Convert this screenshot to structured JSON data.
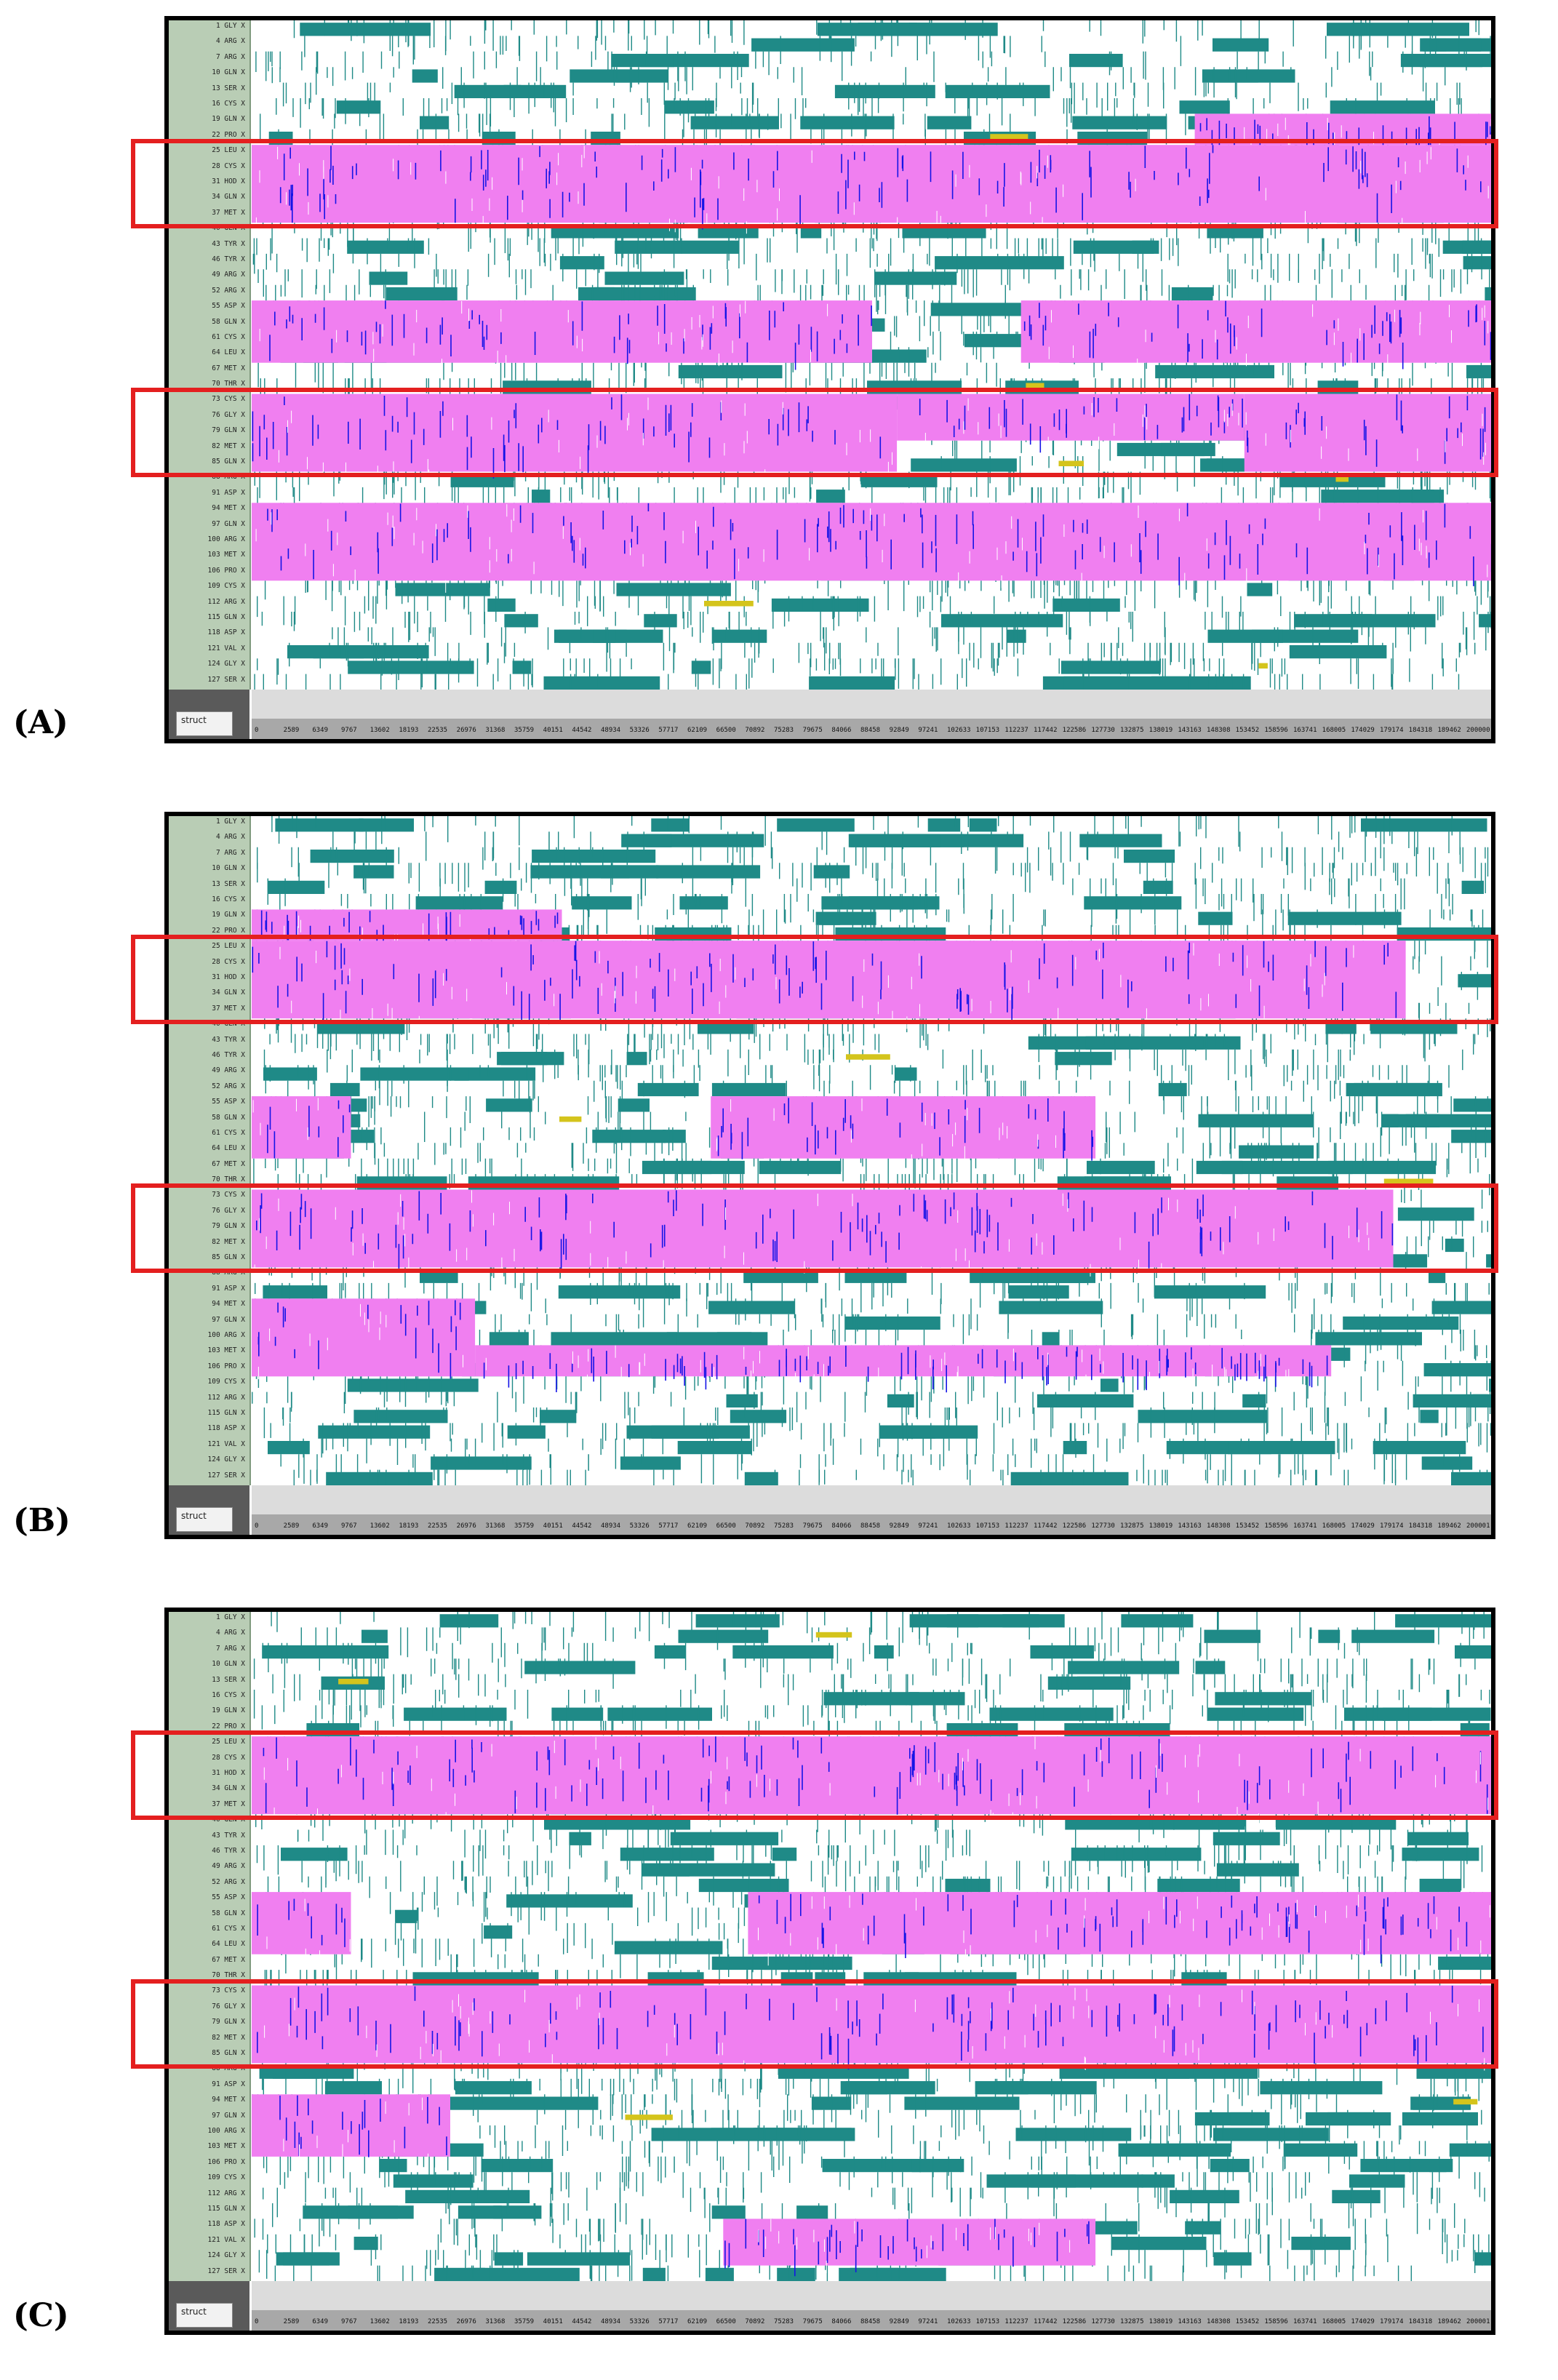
{
  "panels": [
    {
      "label": "(A)",
      "struct_button": "struct",
      "residues": [
        "1 GLY X",
        "4 ARG X",
        "7 ARG X",
        "10 GLN X",
        "13 SER X",
        "16 CYS X",
        "19 GLN X",
        "22 PRO X",
        "25 LEU X",
        "28 CYS X",
        "31 HOD X",
        "34 GLN X",
        "37 MET X",
        "40 GLN X",
        "43 TYR X",
        "46 TYR X",
        "49 ARG X",
        "52 ARG X",
        "55 ASP X",
        "58 GLN X",
        "61 CYS X",
        "64 LEU X",
        "67 MET X",
        "70 THR X",
        "73 CYS X",
        "76 GLY X",
        "79 GLN X",
        "82 MET X",
        "85 GLN X",
        "88 ARG X",
        "91 ASP X",
        "94 MET X",
        "97 GLN X",
        "100 ARG X",
        "103 MET X",
        "106 PRO X",
        "109 CYS X",
        "112 ARG X",
        "115 GLN X",
        "118 ASP X",
        "121 VAL X",
        "124 GLY X",
        "127 SER X"
      ],
      "time_ticks": [
        "0",
        "2589",
        "6349",
        "9767",
        "13602",
        "18193",
        "22535",
        "26976",
        "31368",
        "35759",
        "40151",
        "44542",
        "48934",
        "53326",
        "57717",
        "62109",
        "66500",
        "70892",
        "75283",
        "79675",
        "84066",
        "88458",
        "92849",
        "97241",
        "102633",
        "107153",
        "112237",
        "117442",
        "122586",
        "127730",
        "132875",
        "138019",
        "143163",
        "148308",
        "153452",
        "158596",
        "163741",
        "168005",
        "174029",
        "179174",
        "184318",
        "189462",
        "200000"
      ],
      "highlight_rows": [
        [
          8,
          12
        ],
        [
          24,
          28
        ]
      ],
      "helix_runs": [
        {
          "row_start": 6,
          "row_end": 7,
          "from": 0.76,
          "to": 1.0
        },
        {
          "row_start": 8,
          "row_end": 12,
          "from": 0.0,
          "to": 1.0
        },
        {
          "row_start": 18,
          "row_end": 21,
          "from": 0.0,
          "to": 0.5
        },
        {
          "row_start": 18,
          "row_end": 21,
          "from": 0.62,
          "to": 1.0
        },
        {
          "row_start": 24,
          "row_end": 28,
          "from": 0.0,
          "to": 0.52
        },
        {
          "row_start": 24,
          "row_end": 26,
          "from": 0.52,
          "to": 0.8
        },
        {
          "row_start": 24,
          "row_end": 28,
          "from": 0.8,
          "to": 1.0
        },
        {
          "row_start": 31,
          "row_end": 35,
          "from": 0.0,
          "to": 1.0
        }
      ]
    },
    {
      "label": "(B)",
      "struct_button": "struct",
      "residues": [
        "1 GLY X",
        "4 ARG X",
        "7 ARG X",
        "10 GLN X",
        "13 SER X",
        "16 CYS X",
        "19 GLN X",
        "22 PRO X",
        "25 LEU X",
        "28 CYS X",
        "31 HOD X",
        "34 GLN X",
        "37 MET X",
        "40 GLN X",
        "43 TYR X",
        "46 TYR X",
        "49 ARG X",
        "52 ARG X",
        "55 ASP X",
        "58 GLN X",
        "61 CYS X",
        "64 LEU X",
        "67 MET X",
        "70 THR X",
        "73 CYS X",
        "76 GLY X",
        "79 GLN X",
        "82 MET X",
        "85 GLN X",
        "88 ARG X",
        "91 ASP X",
        "94 MET X",
        "97 GLN X",
        "100 ARG X",
        "103 MET X",
        "106 PRO X",
        "109 CYS X",
        "112 ARG X",
        "115 GLN X",
        "118 ASP X",
        "121 VAL X",
        "124 GLY X",
        "127 SER X"
      ],
      "time_ticks": [
        "0",
        "2589",
        "6349",
        "9767",
        "13602",
        "18193",
        "22535",
        "26976",
        "31368",
        "35759",
        "40151",
        "44542",
        "48934",
        "53326",
        "57717",
        "62109",
        "66500",
        "70892",
        "75283",
        "79675",
        "84066",
        "88458",
        "92849",
        "97241",
        "102633",
        "107153",
        "112237",
        "117442",
        "122586",
        "127730",
        "132875",
        "138019",
        "143163",
        "148308",
        "153452",
        "158596",
        "163741",
        "168005",
        "174029",
        "179174",
        "184318",
        "189462",
        "200001"
      ],
      "highlight_rows": [
        [
          8,
          12
        ],
        [
          24,
          28
        ]
      ],
      "helix_runs": [
        {
          "row_start": 6,
          "row_end": 7,
          "from": 0.0,
          "to": 0.25
        },
        {
          "row_start": 8,
          "row_end": 12,
          "from": 0.0,
          "to": 0.93
        },
        {
          "row_start": 18,
          "row_end": 21,
          "from": 0.0,
          "to": 0.08
        },
        {
          "row_start": 18,
          "row_end": 21,
          "from": 0.37,
          "to": 0.68
        },
        {
          "row_start": 24,
          "row_end": 28,
          "from": 0.0,
          "to": 0.92
        },
        {
          "row_start": 31,
          "row_end": 35,
          "from": 0.0,
          "to": 0.18
        },
        {
          "row_start": 34,
          "row_end": 35,
          "from": 0.18,
          "to": 0.87
        }
      ]
    },
    {
      "label": "(C)",
      "struct_button": "struct",
      "residues": [
        "1 GLY X",
        "4 ARG X",
        "7 ARG X",
        "10 GLN X",
        "13 SER X",
        "16 CYS X",
        "19 GLN X",
        "22 PRO X",
        "25 LEU X",
        "28 CYS X",
        "31 HOD X",
        "34 GLN X",
        "37 MET X",
        "40 GLN X",
        "43 TYR X",
        "46 TYR X",
        "49 ARG X",
        "52 ARG X",
        "55 ASP X",
        "58 GLN X",
        "61 CYS X",
        "64 LEU X",
        "67 MET X",
        "70 THR X",
        "73 CYS X",
        "76 GLY X",
        "79 GLN X",
        "82 MET X",
        "85 GLN X",
        "88 ARG X",
        "91 ASP X",
        "94 MET X",
        "97 GLN X",
        "100 ARG X",
        "103 MET X",
        "106 PRO X",
        "109 CYS X",
        "112 ARG X",
        "115 GLN X",
        "118 ASP X",
        "121 VAL X",
        "124 GLY X",
        "127 SER X"
      ],
      "time_ticks": [
        "0",
        "2589",
        "6349",
        "9767",
        "13602",
        "18193",
        "22535",
        "26976",
        "31368",
        "35759",
        "40151",
        "44542",
        "48934",
        "53326",
        "57717",
        "62109",
        "66500",
        "70892",
        "75283",
        "79675",
        "84066",
        "88458",
        "92849",
        "97241",
        "102633",
        "107153",
        "112237",
        "117442",
        "122586",
        "127730",
        "132875",
        "138019",
        "143163",
        "148308",
        "153452",
        "158596",
        "163741",
        "168005",
        "174029",
        "179174",
        "184318",
        "189462",
        "200001"
      ],
      "highlight_rows": [
        [
          8,
          12
        ],
        [
          24,
          28
        ]
      ],
      "helix_runs": [
        {
          "row_start": 8,
          "row_end": 12,
          "from": 0.0,
          "to": 1.0
        },
        {
          "row_start": 18,
          "row_end": 21,
          "from": 0.0,
          "to": 0.08
        },
        {
          "row_start": 18,
          "row_end": 21,
          "from": 0.4,
          "to": 1.0
        },
        {
          "row_start": 24,
          "row_end": 28,
          "from": 0.0,
          "to": 1.0
        },
        {
          "row_start": 31,
          "row_end": 34,
          "from": 0.0,
          "to": 0.16
        },
        {
          "row_start": 39,
          "row_end": 41,
          "from": 0.38,
          "to": 0.68
        }
      ]
    }
  ],
  "colors": {
    "alpha_helix": "#f07ff0",
    "turn": "#1f8a87",
    "three_ten_helix": "#1414e6",
    "bridge": "#d4c41c",
    "coil": "#ffffff",
    "highlight_box": "#e41f1f",
    "residue_column": "#b9cdb5"
  }
}
